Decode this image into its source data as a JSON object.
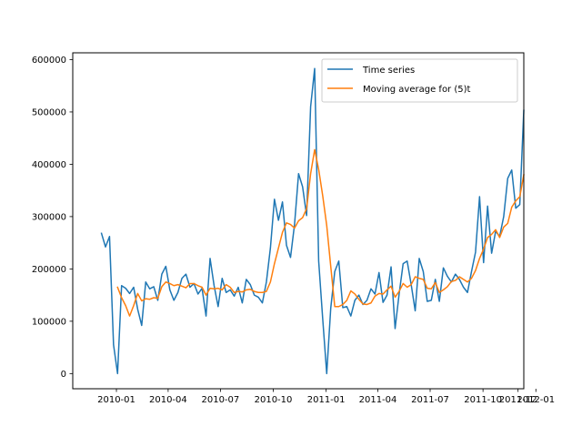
{
  "chart_data": {
    "type": "line",
    "x_type": "date",
    "xlim": [
      "2009-10-17",
      "2011-12-11"
    ],
    "ylim": [
      -29000,
      613000
    ],
    "x_ticks": [
      {
        "date": "2010-01-01",
        "label": "2010-01"
      },
      {
        "date": "2010-04-01",
        "label": "2010-04"
      },
      {
        "date": "2010-07-01",
        "label": "2010-07"
      },
      {
        "date": "2010-10-01",
        "label": "2010-10"
      },
      {
        "date": "2011-01-01",
        "label": "2011-01"
      },
      {
        "date": "2011-04-01",
        "label": "2011-04"
      },
      {
        "date": "2011-07-01",
        "label": "2011-07"
      },
      {
        "date": "2011-10-01",
        "label": "2011-10"
      },
      {
        "date": "2011-12-01",
        "label": "2011-12"
      },
      {
        "date": "2012-01-01",
        "label": "2012-01"
      }
    ],
    "y_ticks": [
      {
        "value": 0,
        "label": "0"
      },
      {
        "value": 100000,
        "label": "100000"
      },
      {
        "value": 200000,
        "label": "200000"
      },
      {
        "value": 300000,
        "label": "300000"
      },
      {
        "value": 400000,
        "label": "400000"
      },
      {
        "value": 500000,
        "label": "500000"
      },
      {
        "value": 600000,
        "label": "600000"
      }
    ],
    "legend_position": "top-right",
    "series": [
      {
        "name": "Time series",
        "color": "#1f77b4",
        "points": [
          [
            "2009-12-06",
            268000
          ],
          [
            "2009-12-13",
            242000
          ],
          [
            "2009-12-20",
            262000
          ],
          [
            "2009-12-27",
            55000
          ],
          [
            "2010-01-03",
            0
          ],
          [
            "2010-01-10",
            168000
          ],
          [
            "2010-01-17",
            163000
          ],
          [
            "2010-01-24",
            153000
          ],
          [
            "2010-01-31",
            165000
          ],
          [
            "2010-02-07",
            123000
          ],
          [
            "2010-02-14",
            92000
          ],
          [
            "2010-02-21",
            175000
          ],
          [
            "2010-02-28",
            162000
          ],
          [
            "2010-03-07",
            166000
          ],
          [
            "2010-03-14",
            140000
          ],
          [
            "2010-03-21",
            190000
          ],
          [
            "2010-03-28",
            205000
          ],
          [
            "2010-04-04",
            160000
          ],
          [
            "2010-04-11",
            140000
          ],
          [
            "2010-04-18",
            155000
          ],
          [
            "2010-04-25",
            182000
          ],
          [
            "2010-05-02",
            190000
          ],
          [
            "2010-05-09",
            165000
          ],
          [
            "2010-05-16",
            172000
          ],
          [
            "2010-05-23",
            152000
          ],
          [
            "2010-05-30",
            163000
          ],
          [
            "2010-06-06",
            110000
          ],
          [
            "2010-06-13",
            220000
          ],
          [
            "2010-06-20",
            168000
          ],
          [
            "2010-06-27",
            128000
          ],
          [
            "2010-07-04",
            182000
          ],
          [
            "2010-07-11",
            155000
          ],
          [
            "2010-07-18",
            160000
          ],
          [
            "2010-07-25",
            148000
          ],
          [
            "2010-08-01",
            165000
          ],
          [
            "2010-08-08",
            135000
          ],
          [
            "2010-08-15",
            180000
          ],
          [
            "2010-08-22",
            170000
          ],
          [
            "2010-08-29",
            150000
          ],
          [
            "2010-09-05",
            146000
          ],
          [
            "2010-09-12",
            135000
          ],
          [
            "2010-09-19",
            175000
          ],
          [
            "2010-09-26",
            240000
          ],
          [
            "2010-10-03",
            333000
          ],
          [
            "2010-10-10",
            293000
          ],
          [
            "2010-10-17",
            328000
          ],
          [
            "2010-10-24",
            245000
          ],
          [
            "2010-10-31",
            222000
          ],
          [
            "2010-11-07",
            285000
          ],
          [
            "2010-11-14",
            382000
          ],
          [
            "2010-11-21",
            357000
          ],
          [
            "2010-11-28",
            302000
          ],
          [
            "2010-12-05",
            510000
          ],
          [
            "2010-12-12",
            583000
          ],
          [
            "2010-12-19",
            215000
          ],
          [
            "2010-12-26",
            105000
          ],
          [
            "2011-01-02",
            0
          ],
          [
            "2011-01-09",
            125000
          ],
          [
            "2011-01-16",
            195000
          ],
          [
            "2011-01-23",
            215000
          ],
          [
            "2011-01-30",
            126000
          ],
          [
            "2011-02-06",
            128000
          ],
          [
            "2011-02-13",
            110000
          ],
          [
            "2011-02-20",
            140000
          ],
          [
            "2011-02-27",
            150000
          ],
          [
            "2011-03-06",
            132000
          ],
          [
            "2011-03-13",
            140000
          ],
          [
            "2011-03-20",
            162000
          ],
          [
            "2011-03-27",
            152000
          ],
          [
            "2011-04-03",
            193000
          ],
          [
            "2011-04-10",
            136000
          ],
          [
            "2011-04-17",
            150000
          ],
          [
            "2011-04-24",
            204000
          ],
          [
            "2011-05-01",
            86000
          ],
          [
            "2011-05-08",
            152000
          ],
          [
            "2011-05-15",
            210000
          ],
          [
            "2011-05-22",
            215000
          ],
          [
            "2011-05-29",
            170000
          ],
          [
            "2011-06-05",
            120000
          ],
          [
            "2011-06-12",
            220000
          ],
          [
            "2011-06-19",
            195000
          ],
          [
            "2011-06-26",
            138000
          ],
          [
            "2011-07-03",
            140000
          ],
          [
            "2011-07-10",
            180000
          ],
          [
            "2011-07-17",
            138000
          ],
          [
            "2011-07-24",
            202000
          ],
          [
            "2011-07-31",
            186000
          ],
          [
            "2011-08-07",
            175000
          ],
          [
            "2011-08-14",
            190000
          ],
          [
            "2011-08-21",
            180000
          ],
          [
            "2011-08-28",
            165000
          ],
          [
            "2011-09-04",
            155000
          ],
          [
            "2011-09-11",
            195000
          ],
          [
            "2011-09-18",
            232000
          ],
          [
            "2011-09-25",
            338000
          ],
          [
            "2011-10-02",
            212000
          ],
          [
            "2011-10-09",
            320000
          ],
          [
            "2011-10-16",
            230000
          ],
          [
            "2011-10-23",
            272000
          ],
          [
            "2011-10-30",
            262000
          ],
          [
            "2011-11-06",
            300000
          ],
          [
            "2011-11-13",
            373000
          ],
          [
            "2011-11-20",
            389000
          ],
          [
            "2011-11-27",
            316000
          ],
          [
            "2011-12-04",
            323000
          ],
          [
            "2011-12-11",
            503000
          ]
        ]
      },
      {
        "name": "Moving average for (5)t",
        "color": "#ff7f0e",
        "points": [
          [
            "2010-01-03",
            165000
          ],
          [
            "2010-01-10",
            145000
          ],
          [
            "2010-01-17",
            130000
          ],
          [
            "2010-01-24",
            110000
          ],
          [
            "2010-01-31",
            130000
          ],
          [
            "2010-02-07",
            153000
          ],
          [
            "2010-02-14",
            139000
          ],
          [
            "2010-02-21",
            143000
          ],
          [
            "2010-02-28",
            142000
          ],
          [
            "2010-03-07",
            145000
          ],
          [
            "2010-03-14",
            144000
          ],
          [
            "2010-03-21",
            166000
          ],
          [
            "2010-03-28",
            175000
          ],
          [
            "2010-04-04",
            172000
          ],
          [
            "2010-04-11",
            168000
          ],
          [
            "2010-04-18",
            170000
          ],
          [
            "2010-04-25",
            167000
          ],
          [
            "2010-05-02",
            164000
          ],
          [
            "2010-05-09",
            172000
          ],
          [
            "2010-05-16",
            172000
          ],
          [
            "2010-05-23",
            168000
          ],
          [
            "2010-05-30",
            165000
          ],
          [
            "2010-06-06",
            150000
          ],
          [
            "2010-06-13",
            163000
          ],
          [
            "2010-06-20",
            162000
          ],
          [
            "2010-06-27",
            163000
          ],
          [
            "2010-07-04",
            160000
          ],
          [
            "2010-07-11",
            170000
          ],
          [
            "2010-07-18",
            165000
          ],
          [
            "2010-07-25",
            155000
          ],
          [
            "2010-08-01",
            157000
          ],
          [
            "2010-08-08",
            156000
          ],
          [
            "2010-08-15",
            160000
          ],
          [
            "2010-08-22",
            161000
          ],
          [
            "2010-08-29",
            157000
          ],
          [
            "2010-09-05",
            155000
          ],
          [
            "2010-09-12",
            155000
          ],
          [
            "2010-09-19",
            157000
          ],
          [
            "2010-09-26",
            175000
          ],
          [
            "2010-10-03",
            210000
          ],
          [
            "2010-10-10",
            240000
          ],
          [
            "2010-10-17",
            270000
          ],
          [
            "2010-10-24",
            288000
          ],
          [
            "2010-10-31",
            285000
          ],
          [
            "2010-11-07",
            278000
          ],
          [
            "2010-11-14",
            292000
          ],
          [
            "2010-11-21",
            298000
          ],
          [
            "2010-11-28",
            315000
          ],
          [
            "2010-12-05",
            382000
          ],
          [
            "2010-12-12",
            428000
          ],
          [
            "2010-12-19",
            390000
          ],
          [
            "2010-12-26",
            340000
          ],
          [
            "2011-01-02",
            283000
          ],
          [
            "2011-01-09",
            205000
          ],
          [
            "2011-01-16",
            128000
          ],
          [
            "2011-01-23",
            128000
          ],
          [
            "2011-01-30",
            132000
          ],
          [
            "2011-02-06",
            140000
          ],
          [
            "2011-02-13",
            158000
          ],
          [
            "2011-02-20",
            152000
          ],
          [
            "2011-02-27",
            142000
          ],
          [
            "2011-03-06",
            133000
          ],
          [
            "2011-03-13",
            132000
          ],
          [
            "2011-03-20",
            135000
          ],
          [
            "2011-03-27",
            148000
          ],
          [
            "2011-04-03",
            153000
          ],
          [
            "2011-04-10",
            152000
          ],
          [
            "2011-04-17",
            160000
          ],
          [
            "2011-04-24",
            167000
          ],
          [
            "2011-05-01",
            146000
          ],
          [
            "2011-05-08",
            157000
          ],
          [
            "2011-05-15",
            172000
          ],
          [
            "2011-05-22",
            165000
          ],
          [
            "2011-05-29",
            170000
          ],
          [
            "2011-06-05",
            185000
          ],
          [
            "2011-06-12",
            182000
          ],
          [
            "2011-06-19",
            180000
          ],
          [
            "2011-06-26",
            163000
          ],
          [
            "2011-07-03",
            162000
          ],
          [
            "2011-07-10",
            174000
          ],
          [
            "2011-07-17",
            155000
          ],
          [
            "2011-07-24",
            160000
          ],
          [
            "2011-07-31",
            166000
          ],
          [
            "2011-08-07",
            176000
          ],
          [
            "2011-08-14",
            178000
          ],
          [
            "2011-08-21",
            185000
          ],
          [
            "2011-08-28",
            180000
          ],
          [
            "2011-09-04",
            175000
          ],
          [
            "2011-09-11",
            182000
          ],
          [
            "2011-09-18",
            197000
          ],
          [
            "2011-09-25",
            220000
          ],
          [
            "2011-10-02",
            238000
          ],
          [
            "2011-10-09",
            260000
          ],
          [
            "2011-10-16",
            266000
          ],
          [
            "2011-10-23",
            275000
          ],
          [
            "2011-10-30",
            260000
          ],
          [
            "2011-11-06",
            280000
          ],
          [
            "2011-11-13",
            287000
          ],
          [
            "2011-11-20",
            318000
          ],
          [
            "2011-11-27",
            330000
          ],
          [
            "2011-12-04",
            338000
          ],
          [
            "2011-12-11",
            380000
          ]
        ]
      }
    ]
  }
}
